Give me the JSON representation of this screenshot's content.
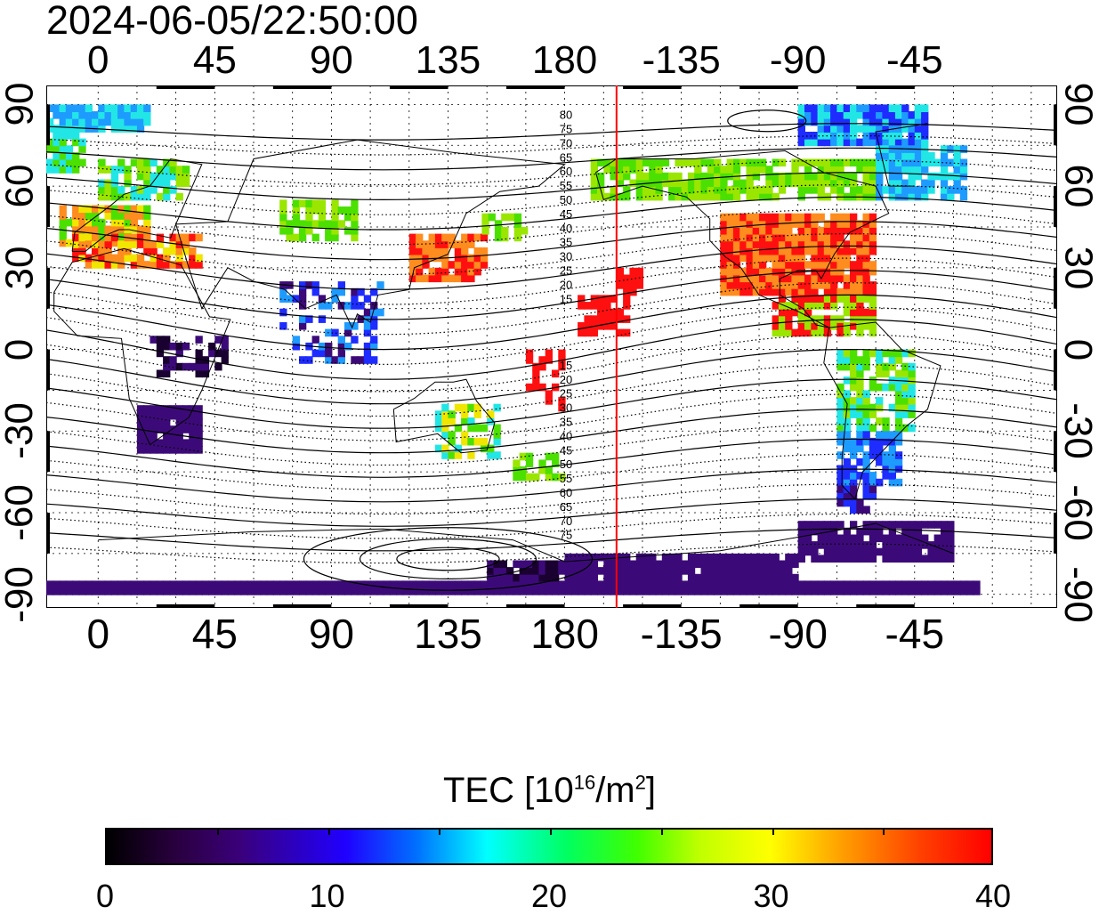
{
  "title": "2024-06-05/22:50:00",
  "top_lon_ticks": [
    "0",
    "45",
    "90",
    "135",
    "180",
    "-135",
    "-90",
    "-45"
  ],
  "bottom_lon_ticks": [
    "0",
    "45",
    "90",
    "135",
    "180",
    "-135",
    "-90",
    "-45"
  ],
  "lat_ticks_left": [
    "90",
    "60",
    "30",
    "0",
    "-30",
    "-60",
    "-90"
  ],
  "lat_ticks_right": [
    "90",
    "60",
    "30",
    "0",
    "-30",
    "-60",
    "-90"
  ],
  "maglat_north": [
    "80",
    "75",
    "70",
    "65",
    "60",
    "55",
    "50",
    "45",
    "40",
    "35",
    "30",
    "25",
    "20",
    "15"
  ],
  "maglat_south": [
    "15",
    "20",
    "25",
    "30",
    "35",
    "40",
    "45",
    "50",
    "55",
    "60",
    "65",
    "70",
    "75"
  ],
  "colorbar": {
    "label_main": "TEC  [10",
    "label_exp": "16",
    "label_unit": "/m",
    "label_exp2": "2",
    "label_end": "]",
    "ticks": [
      "0",
      "10",
      "20",
      "30",
      "40"
    ],
    "min": 0,
    "max": 40
  },
  "map": {
    "lon_range": [
      -20,
      370
    ],
    "lat_range": [
      -95,
      97
    ],
    "terminator_lon": -160,
    "terminator_color": "#ff0000"
  },
  "colors": {
    "dark": "#1a0030",
    "purple": "#3c0a78",
    "blue": "#1e2cff",
    "lightblue": "#1e9bff",
    "cyan": "#22e6e6",
    "green": "#4ce000",
    "lime": "#9ae600",
    "yellow": "#f0e600",
    "orange": "#ff8c1e",
    "red": "#ff1010"
  }
}
